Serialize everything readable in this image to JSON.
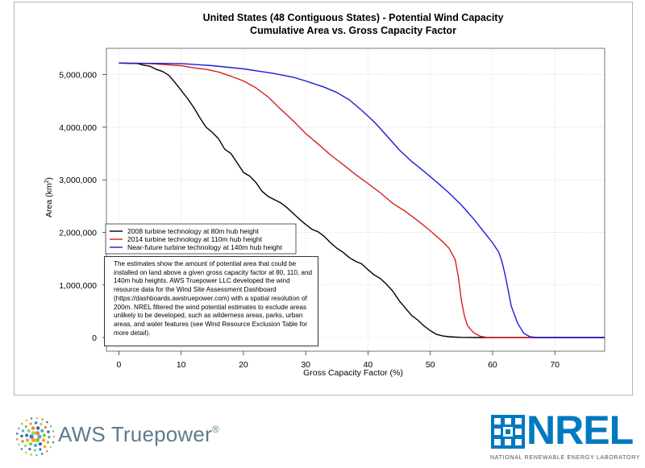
{
  "chart_data": {
    "type": "line",
    "title": "United States (48 Contiguous States) - Potential Wind Capacity",
    "subtitle": "Cumulative Area vs. Gross Capacity Factor",
    "xlabel": "Gross Capacity Factor (%)",
    "ylabel": "Area (km",
    "ylabel_sup": "2",
    "ylabel_end": ")",
    "xlim": [
      -2,
      78
    ],
    "ylim": [
      -260000,
      5500000
    ],
    "x_ticks": [
      0,
      10,
      20,
      30,
      40,
      50,
      60,
      70
    ],
    "x_tick_labels": [
      "0",
      "10",
      "20",
      "30",
      "40",
      "50",
      "60",
      "70"
    ],
    "y_ticks": [
      0,
      1000000,
      2000000,
      3000000,
      4000000,
      5000000
    ],
    "y_tick_labels": [
      "0",
      "1,000,000",
      "2,000,000",
      "3,000,000",
      "4,000,000",
      "5,000,000"
    ],
    "grid": true,
    "legend_position": "middle-left",
    "series": [
      {
        "name": "2008 turbine technology at 80m hub height",
        "color": "#000000",
        "x": [
          0,
          3,
          4,
          5,
          6,
          7,
          8,
          9,
          10,
          11,
          12,
          13,
          14,
          15,
          16,
          17,
          18,
          19,
          20,
          21,
          22,
          23,
          24,
          25,
          26,
          27,
          28,
          29,
          30,
          31,
          32,
          33,
          34,
          35,
          36,
          37,
          38,
          39,
          40,
          41,
          42,
          43,
          44,
          45,
          46,
          47,
          48,
          49,
          50,
          51,
          52,
          53,
          54,
          55,
          56,
          57,
          58,
          78
        ],
        "values": [
          5220000,
          5210000,
          5180000,
          5160000,
          5100000,
          5060000,
          4990000,
          4850000,
          4700000,
          4550000,
          4380000,
          4180000,
          4000000,
          3900000,
          3780000,
          3580000,
          3500000,
          3320000,
          3140000,
          3070000,
          2950000,
          2780000,
          2680000,
          2620000,
          2560000,
          2470000,
          2360000,
          2250000,
          2150000,
          2060000,
          2010000,
          1920000,
          1800000,
          1700000,
          1620000,
          1520000,
          1450000,
          1400000,
          1290000,
          1190000,
          1120000,
          1010000,
          880000,
          700000,
          560000,
          420000,
          330000,
          220000,
          130000,
          60000,
          30000,
          15000,
          8000,
          4000,
          2000,
          1000,
          0,
          0
        ]
      },
      {
        "name": "2014 turbine technology at 110m hub height",
        "color": "#d62020",
        "x": [
          0,
          5,
          10,
          12,
          14,
          16,
          18,
          20,
          22,
          24,
          26,
          28,
          30,
          32,
          34,
          36,
          38,
          40,
          42,
          44,
          46,
          48,
          50,
          52,
          53,
          54,
          54.5,
          55,
          55.5,
          56,
          57,
          58,
          59,
          60,
          78
        ],
        "values": [
          5220000,
          5210000,
          5170000,
          5130000,
          5100000,
          5050000,
          4970000,
          4880000,
          4750000,
          4570000,
          4340000,
          4120000,
          3880000,
          3680000,
          3470000,
          3290000,
          3100000,
          2930000,
          2750000,
          2550000,
          2400000,
          2220000,
          2030000,
          1820000,
          1700000,
          1480000,
          1150000,
          700000,
          400000,
          220000,
          90000,
          25000,
          5000,
          0,
          0
        ]
      },
      {
        "name": "Near-future turbine technology at 140m hub height",
        "color": "#1c1cd6",
        "x": [
          0,
          10,
          15,
          20,
          25,
          28,
          30,
          33,
          35,
          37,
          39,
          41,
          43,
          45,
          47,
          49,
          51,
          53,
          55,
          57,
          59,
          60,
          61,
          61.5,
          62,
          62.5,
          63,
          64,
          65,
          66,
          67,
          78
        ],
        "values": [
          5220000,
          5210000,
          5170000,
          5110000,
          5020000,
          4950000,
          4880000,
          4760000,
          4660000,
          4520000,
          4320000,
          4100000,
          3840000,
          3570000,
          3350000,
          3160000,
          2960000,
          2750000,
          2520000,
          2250000,
          1950000,
          1800000,
          1620000,
          1450000,
          1200000,
          900000,
          600000,
          280000,
          80000,
          15000,
          0,
          0
        ]
      }
    ]
  },
  "note": {
    "text": "The estimates show the amount of potential area that could be installed on land above a given gross capacity factor at 80, 110, and 140m hub heights. AWS Truepower LLC developed the wind resource data for the Wind Site Assessment Dashboard (https://dashboards.awstruepower.com) with a spatial resolution of 200m. NREL filtered the wind potential estimates to exclude areas unlikely to be developed, such as wilderness areas, parks, urban areas, and water features (see Wind Resource Exclusion Table for more detail)."
  },
  "logos": {
    "aws": {
      "name": "AWS Truepower",
      "reg": "®"
    },
    "nrel": {
      "name": "NREL",
      "subtitle": "NATIONAL RENEWABLE ENERGY LABORATORY",
      "color": "#0079c1"
    }
  }
}
